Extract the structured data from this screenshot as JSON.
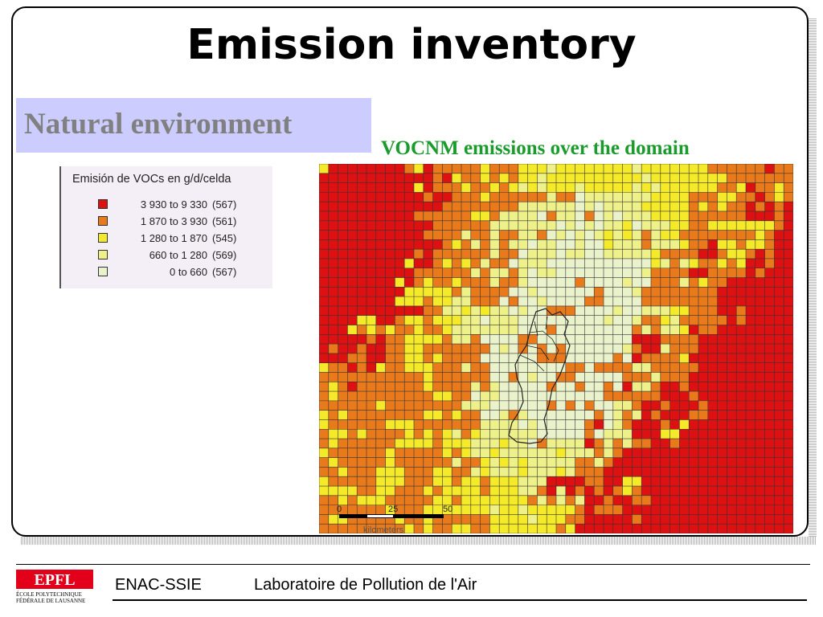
{
  "slide": {
    "title": "Emission inventory",
    "subtitle": "Natural environment",
    "map_caption": "VOCNM emissions over the domain"
  },
  "legend": {
    "title": "Emisión de VOCs en g/d/celda",
    "entries": [
      {
        "range": "3 930 to 9 330",
        "count": "(567)",
        "color": "#dd1111"
      },
      {
        "range": "1 870 to 3 930",
        "count": "(561)",
        "color": "#e87a1c"
      },
      {
        "range": "1 280 to 1 870",
        "count": "(545)",
        "color": "#f5ea2a"
      },
      {
        "range": "660 to 1 280",
        "count": "(569)",
        "color": "#eef08a"
      },
      {
        "range": "0 to    660",
        "count": "(567)",
        "color": "#eaf2cc"
      }
    ]
  },
  "map": {
    "grid_lines": "#333333",
    "scale": {
      "ticks": [
        "0",
        "25",
        "50"
      ],
      "units": "kilometers"
    }
  },
  "footer": {
    "left": "ENAC-SSIE",
    "right": "Laboratoire de Pollution de l'Air",
    "logo_mark": "EPFL",
    "logo_line1": "ÉCOLE POLYTECHNIQUE",
    "logo_line2": "FÉDÉRALE DE LAUSANNE"
  }
}
